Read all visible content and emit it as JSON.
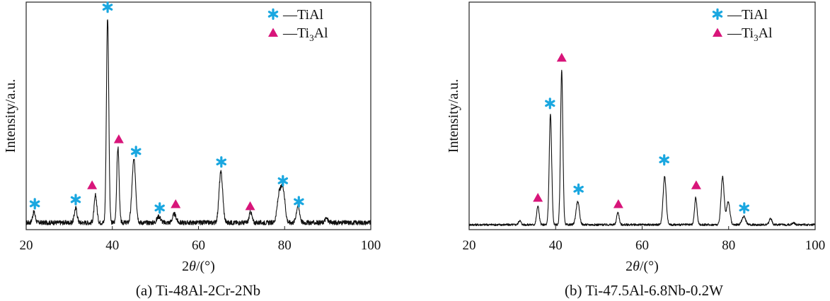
{
  "colors": {
    "tial_marker": "#1aa7e0",
    "ti3al_marker": "#d8157a",
    "trace": "#111111",
    "frame": "#222222"
  },
  "chart_data": [
    {
      "type": "line",
      "caption": "(a) Ti-48Al-2Cr-2Nb",
      "xlabel_prefix": "2",
      "xlabel_theta": "θ",
      "xlabel_suffix": "/(°)",
      "ylabel": "Intensity/a.u.",
      "xlim": [
        20,
        100
      ],
      "ylim": [
        0,
        100
      ],
      "xticks": [
        20,
        40,
        60,
        80,
        100
      ],
      "grid": false,
      "legend_position": "top-right",
      "legend": [
        {
          "marker": "tial",
          "text": "—TiAl"
        },
        {
          "marker": "ti3al",
          "text_main": "—Ti",
          "text_sub": "3",
          "text_tail": "Al"
        }
      ],
      "baseline": 2,
      "peaks": [
        {
          "x": 21.8,
          "h": 5,
          "w": 0.45
        },
        {
          "x": 31.5,
          "h": 7,
          "w": 0.45
        },
        {
          "x": 36.1,
          "h": 13,
          "w": 0.45
        },
        {
          "x": 38.9,
          "h": 98,
          "w": 0.38
        },
        {
          "x": 41.3,
          "h": 36,
          "w": 0.38
        },
        {
          "x": 45.0,
          "h": 30,
          "w": 0.6
        },
        {
          "x": 50.8,
          "h": 3,
          "w": 0.6
        },
        {
          "x": 54.4,
          "h": 4,
          "w": 0.6
        },
        {
          "x": 65.2,
          "h": 24,
          "w": 0.6
        },
        {
          "x": 72.1,
          "h": 5,
          "w": 0.45
        },
        {
          "x": 78.8,
          "h": 14,
          "w": 0.7
        },
        {
          "x": 79.7,
          "h": 14,
          "w": 0.6
        },
        {
          "x": 83.1,
          "h": 8,
          "w": 0.55
        },
        {
          "x": 89.7,
          "h": 2,
          "w": 0.5
        }
      ],
      "markers": [
        {
          "phase": "tial",
          "x": 22.0,
          "y": 11
        },
        {
          "phase": "tial",
          "x": 31.5,
          "y": 13
        },
        {
          "phase": "ti3al",
          "x": 35.3,
          "y": 20
        },
        {
          "phase": "tial",
          "x": 38.9,
          "y": 105
        },
        {
          "phase": "ti3al",
          "x": 41.5,
          "y": 42
        },
        {
          "phase": "tial",
          "x": 45.5,
          "y": 36
        },
        {
          "phase": "tial",
          "x": 51.0,
          "y": 9
        },
        {
          "phase": "ti3al",
          "x": 54.7,
          "y": 11
        },
        {
          "phase": "tial",
          "x": 65.3,
          "y": 31
        },
        {
          "phase": "ti3al",
          "x": 72.0,
          "y": 10
        },
        {
          "phase": "tial",
          "x": 79.6,
          "y": 22
        },
        {
          "phase": "tial",
          "x": 83.3,
          "y": 12
        }
      ]
    },
    {
      "type": "line",
      "caption": "(b) Ti-47.5Al-6.8Nb-0.2W",
      "xlabel_prefix": "2",
      "xlabel_theta": "θ",
      "xlabel_suffix": "/(°)",
      "ylabel": "Intensity/a.u.",
      "xlim": [
        20,
        100
      ],
      "ylim": [
        0,
        100
      ],
      "xticks": [
        20,
        40,
        60,
        80,
        100
      ],
      "grid": false,
      "legend_position": "top-right",
      "legend": [
        {
          "marker": "tial",
          "text": "—TiAl"
        },
        {
          "marker": "ti3al",
          "text_main": "—Ti",
          "text_sub": "3",
          "text_tail": "Al"
        }
      ],
      "baseline": 1,
      "peaks": [
        {
          "x": 31.7,
          "h": 2,
          "w": 0.4
        },
        {
          "x": 35.9,
          "h": 9,
          "w": 0.4
        },
        {
          "x": 38.8,
          "h": 53,
          "w": 0.4
        },
        {
          "x": 41.4,
          "h": 74,
          "w": 0.38
        },
        {
          "x": 45.1,
          "h": 11,
          "w": 0.55
        },
        {
          "x": 54.4,
          "h": 6,
          "w": 0.4
        },
        {
          "x": 65.2,
          "h": 23,
          "w": 0.5
        },
        {
          "x": 72.4,
          "h": 13,
          "w": 0.4
        },
        {
          "x": 78.6,
          "h": 23,
          "w": 0.5
        },
        {
          "x": 79.9,
          "h": 11,
          "w": 0.55
        },
        {
          "x": 83.5,
          "h": 4,
          "w": 0.6
        },
        {
          "x": 89.7,
          "h": 3,
          "w": 0.45
        },
        {
          "x": 95.0,
          "h": 1,
          "w": 0.45
        }
      ],
      "markers": [
        {
          "phase": "ti3al",
          "x": 35.9,
          "y": 14
        },
        {
          "phase": "tial",
          "x": 38.7,
          "y": 59
        },
        {
          "phase": "ti3al",
          "x": 41.4,
          "y": 81
        },
        {
          "phase": "tial",
          "x": 45.3,
          "y": 18
        },
        {
          "phase": "ti3al",
          "x": 54.5,
          "y": 11
        },
        {
          "phase": "tial",
          "x": 65.1,
          "y": 32
        },
        {
          "phase": "ti3al",
          "x": 72.5,
          "y": 20
        },
        {
          "phase": "tial",
          "x": 83.6,
          "y": 9
        }
      ]
    }
  ]
}
